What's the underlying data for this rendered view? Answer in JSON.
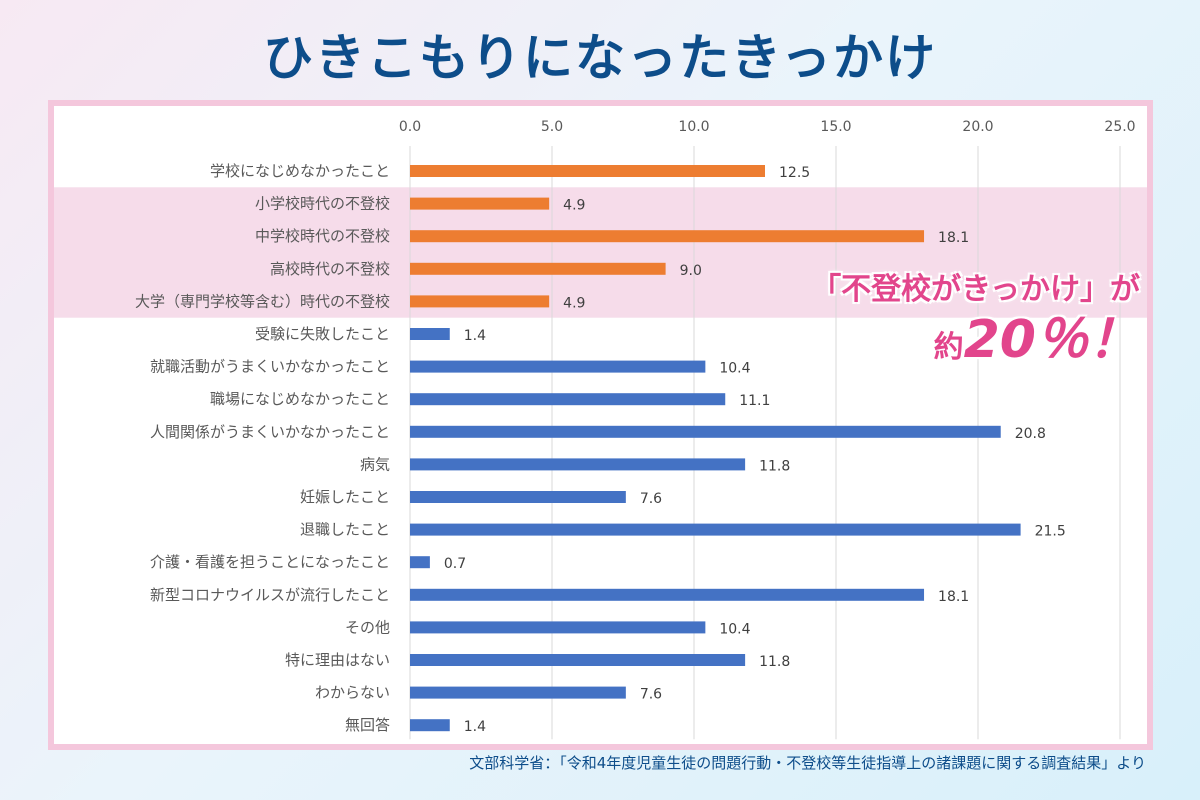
{
  "title": "ひきこもりになったきっかけ",
  "callout": {
    "line1": "「不登校がきっかけ」が",
    "prefix": "約",
    "value": "20％！"
  },
  "source": "文部科学省：「令和4年度児童生徒の問題行動・不登校等生徒指導上の諸課題に関する調査結果」より",
  "colors": {
    "orange": "#ed7d31",
    "blue": "#4472c4",
    "highlight": "#f6dcea",
    "title": "#0d4d8a",
    "callout": "#e2458c"
  },
  "chart_data": {
    "type": "bar",
    "orientation": "horizontal",
    "categories": [
      "学校になじめなかったこと",
      "小学校時代の不登校",
      "中学校時代の不登校",
      "高校時代の不登校",
      "大学（専門学校等含む）時代の不登校",
      "受験に失敗したこと",
      "就職活動がうまくいかなかったこと",
      "職場になじめなかったこと",
      "人間関係がうまくいかなかったこと",
      "病気",
      "妊娠したこと",
      "退職したこと",
      "介護・看護を担うことになったこと",
      "新型コロナウイルスが流行したこと",
      "その他",
      "特に理由はない",
      "わからない",
      "無回答"
    ],
    "values": [
      12.5,
      4.9,
      18.1,
      9.0,
      4.9,
      1.4,
      10.4,
      11.1,
      20.8,
      11.8,
      7.6,
      21.5,
      0.7,
      18.1,
      10.4,
      11.8,
      7.6,
      1.4
    ],
    "value_labels": [
      "12.5",
      "4.9",
      "18.1",
      "9.0",
      "4.9",
      "1.4",
      "10.4",
      "11.1",
      "20.8",
      "11.8",
      "7.6",
      "21.5",
      "0.7",
      "18.1",
      "10.4",
      "11.8",
      "7.6",
      "1.4"
    ],
    "bar_colors": [
      "orange",
      "orange",
      "orange",
      "orange",
      "orange",
      "blue",
      "blue",
      "blue",
      "blue",
      "blue",
      "blue",
      "blue",
      "blue",
      "blue",
      "blue",
      "blue",
      "blue",
      "blue"
    ],
    "highlight_rows": [
      1,
      4
    ],
    "xlim": [
      0,
      25
    ],
    "xticks": [
      0,
      5,
      10,
      15,
      20,
      25
    ],
    "xtick_labels": [
      "0.0",
      "5.0",
      "10.0",
      "15.0",
      "20.0",
      "25.0"
    ],
    "axis_position": "top",
    "grid": true,
    "legend": "none"
  }
}
